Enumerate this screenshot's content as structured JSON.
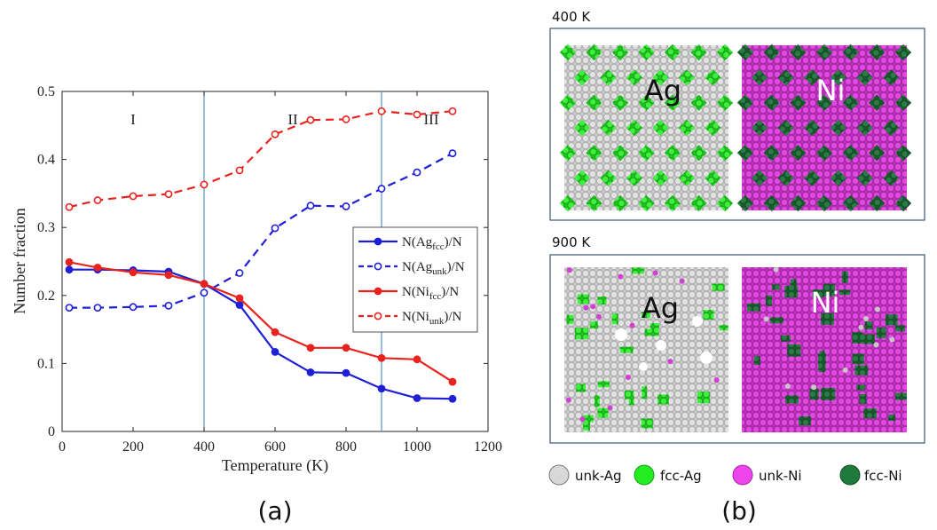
{
  "chart_data": {
    "type": "line",
    "xlabel": "Temperature (K)",
    "ylabel": "Number fraction",
    "xlim": [
      0,
      1200
    ],
    "ylim": [
      0,
      0.5
    ],
    "xticks": [
      "0",
      "200",
      "400",
      "600",
      "800",
      "1000",
      "1200"
    ],
    "yticks": [
      "0",
      "0.1",
      "0.2",
      "0.3",
      "0.4",
      "0.5"
    ],
    "x": [
      20,
      100,
      200,
      300,
      400,
      500,
      600,
      700,
      800,
      900,
      1000,
      1100
    ],
    "series": [
      {
        "name": "N(Ag_fcc)/N",
        "legend_main": "N(Ag",
        "legend_sub": "fcc",
        "legend_tail": ")/N",
        "color": "#1f1fd6",
        "style": "solid",
        "marker": "filled-circle",
        "values": [
          0.238,
          0.238,
          0.237,
          0.235,
          0.217,
          0.186,
          0.117,
          0.087,
          0.086,
          0.063,
          0.049,
          0.048
        ]
      },
      {
        "name": "N(Ag_unk)/N",
        "legend_main": "N(Ag",
        "legend_sub": "unk",
        "legend_tail": ")/N",
        "color": "#1f1fd6",
        "style": "dashed",
        "marker": "open-circle",
        "values": [
          0.182,
          0.182,
          0.183,
          0.185,
          0.204,
          0.233,
          0.299,
          0.332,
          0.331,
          0.357,
          0.381,
          0.409
        ]
      },
      {
        "name": "N(Ni_fcc)/N",
        "legend_main": "N(Ni",
        "legend_sub": "fcc",
        "legend_tail": ")/N",
        "color": "#e8221e",
        "style": "solid",
        "marker": "filled-circle",
        "values": [
          0.249,
          0.241,
          0.234,
          0.23,
          0.217,
          0.196,
          0.146,
          0.123,
          0.123,
          0.108,
          0.106,
          0.073
        ]
      },
      {
        "name": "N(Ni_unk)/N",
        "legend_main": "N(Ni",
        "legend_sub": "unk",
        "legend_tail": ")/N",
        "color": "#e8221e",
        "style": "dashed",
        "marker": "open-circle",
        "values": [
          0.33,
          0.34,
          0.346,
          0.349,
          0.363,
          0.384,
          0.437,
          0.458,
          0.459,
          0.471,
          0.466,
          0.471
        ]
      }
    ],
    "vlines": [
      400,
      900
    ],
    "region_labels": [
      {
        "text": "I",
        "x": 200
      },
      {
        "text": "II",
        "x": 650
      },
      {
        "text": "III",
        "x": 1040
      }
    ],
    "legend_position": "center-right",
    "grid": false
  },
  "panel_a_label": "(a)",
  "panel_b_label": "(b)",
  "snapshots": [
    {
      "temperature": "400 K",
      "left_label": "Ag",
      "right_label": "Ni"
    },
    {
      "temperature": "900 K",
      "left_label": "Ag",
      "right_label": "Ni"
    }
  ],
  "atom_legend": [
    {
      "label": "unk-Ag",
      "color": "#d8d8d8"
    },
    {
      "label": "fcc-Ag",
      "color": "#22ee22"
    },
    {
      "label": "unk-Ni",
      "color": "#ee44ee"
    },
    {
      "label": "fcc-Ni",
      "color": "#1f7a3c"
    }
  ],
  "colors": {
    "ag_unk": "#cfcfcf",
    "ag_fcc": "#2ee32e",
    "ni_unk": "#d23fd2",
    "ni_fcc": "#226e3a",
    "frame": "#3d5575",
    "vline": "#5b8fc7"
  }
}
